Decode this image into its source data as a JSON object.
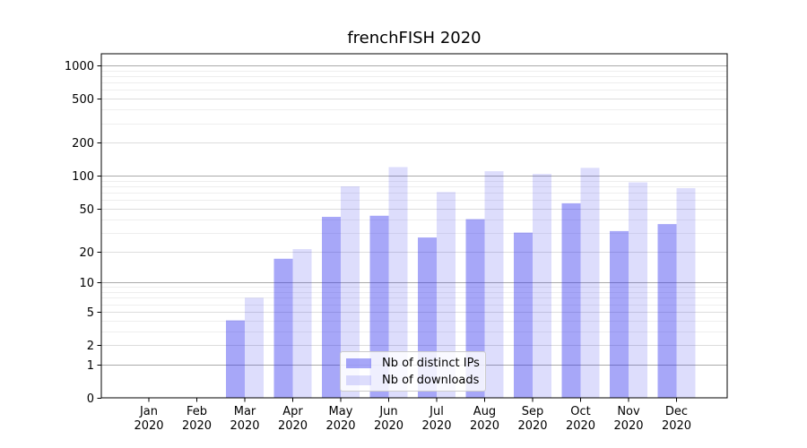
{
  "figure": {
    "title": "frenchFISH 2020"
  },
  "colors": {
    "distinct_ips_bar": "rgba(45,45,238,0.42)",
    "downloads_bar": "rgba(45,45,238,0.16)",
    "decade_grid": "#aaaaaa",
    "major_grid": "#dddddd",
    "minor_grid": "#eeeeee",
    "spine": "#000000",
    "text": "#000000",
    "legend_border": "#cccccc",
    "background": "#ffffff"
  },
  "legend": {
    "entries": [
      {
        "label": "Nb of distinct IPs",
        "series_key": "distinct_ips"
      },
      {
        "label": "Nb of downloads",
        "series_key": "downloads"
      }
    ]
  },
  "axes": {
    "y_major_ticks": [
      0,
      1,
      2,
      5,
      10,
      20,
      50,
      100,
      200,
      500,
      1000
    ],
    "y_decade_ticks": [
      1,
      10,
      100,
      1000
    ],
    "y_minor_ticks": [
      3,
      4,
      6,
      7,
      8,
      9,
      30,
      40,
      60,
      70,
      80,
      90,
      300,
      400,
      600,
      700,
      800,
      900
    ],
    "x_tick_top_labels": [
      "Jan",
      "Feb",
      "Mar",
      "Apr",
      "May",
      "Jun",
      "Jul",
      "Aug",
      "Sep",
      "Oct",
      "Nov",
      "Dec"
    ],
    "x_tick_bottom_label": "2020",
    "y_scale": "log10(value+1)"
  },
  "chart_data": {
    "type": "bar",
    "title": "frenchFISH 2020",
    "categories": [
      "Jan 2020",
      "Feb 2020",
      "Mar 2020",
      "Apr 2020",
      "May 2020",
      "Jun 2020",
      "Jul 2020",
      "Aug 2020",
      "Sep 2020",
      "Oct 2020",
      "Nov 2020",
      "Dec 2020"
    ],
    "series": [
      {
        "name": "Nb of distinct IPs",
        "key": "distinct_ips",
        "values": [
          0,
          0,
          4,
          17,
          42,
          43,
          27,
          40,
          30,
          56,
          31,
          36
        ]
      },
      {
        "name": "Nb of downloads",
        "key": "downloads",
        "values": [
          0,
          0,
          7,
          21,
          80,
          120,
          71,
          110,
          104,
          118,
          87,
          77
        ]
      }
    ],
    "xlabel": "",
    "ylabel": "",
    "yscale": "log1p",
    "ylim": [
      0,
      1275
    ],
    "yticks": [
      0,
      1,
      2,
      5,
      10,
      20,
      50,
      100,
      200,
      500,
      1000
    ],
    "grid": true,
    "legend_position": "lower center inside"
  }
}
